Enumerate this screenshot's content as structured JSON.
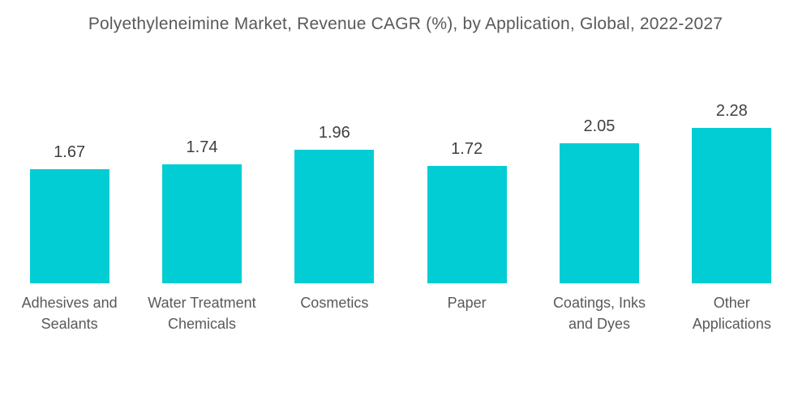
{
  "title": "Polyethyleneimine Market, Revenue CAGR (%), by Application, Global, 2022-2027",
  "colors": {
    "background": "#FFFFFF",
    "bar": "#02CDD4",
    "title_text": "#58595B",
    "value_text": "#404040",
    "category_text": "#595959"
  },
  "chart_data": {
    "type": "bar",
    "title": "Polyethyleneimine Market, Revenue CAGR (%), by Application, Global, 2022-2027",
    "categories": [
      "Adhesives and\nSealants",
      "Water Treatment\nChemicals",
      "Cosmetics",
      "Paper",
      "Coatings, Inks\nand Dyes",
      "Other\nApplications"
    ],
    "values": [
      1.67,
      1.74,
      1.96,
      1.72,
      2.05,
      2.28
    ],
    "value_labels": [
      "1.67",
      "1.74",
      "1.96",
      "1.72",
      "2.05",
      "2.28"
    ],
    "xlabel": "",
    "ylabel": "",
    "ylim": [
      0,
      2.5
    ],
    "grid": false,
    "legend": false,
    "axes_visible": false,
    "data_labels_position": "above-bar"
  }
}
